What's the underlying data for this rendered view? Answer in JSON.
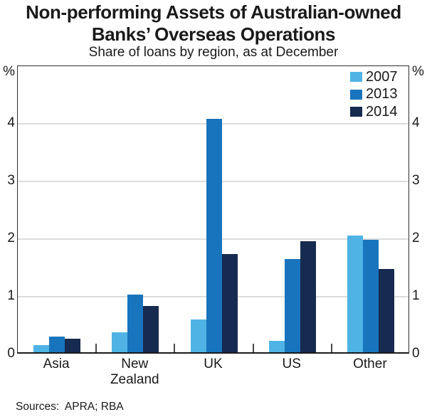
{
  "header": {
    "title_lines": [
      "Non-performing Assets of Australian-owned",
      "Banks’ Overseas Operations"
    ],
    "subtitle": "Share of loans by region, as at December"
  },
  "chart_data": {
    "type": "bar",
    "title": "Non-performing Assets of Australian-owned Banks’ Overseas Operations",
    "subtitle": "Share of loans by region, as at December",
    "categories": [
      "Asia",
      "New Zealand",
      "UK",
      "US",
      "Other"
    ],
    "series": [
      {
        "name": "2007",
        "color": "#4FB4E5",
        "values": [
          0.12,
          0.35,
          0.57,
          0.2,
          2.02
        ]
      },
      {
        "name": "2013",
        "color": "#1874BC",
        "values": [
          0.27,
          1.0,
          4.05,
          1.62,
          1.95
        ]
      },
      {
        "name": "2014",
        "color": "#172A4F",
        "values": [
          0.23,
          0.8,
          1.7,
          1.93,
          1.45
        ]
      }
    ],
    "ylim": [
      0,
      5
    ],
    "yticks": [
      0,
      1,
      2,
      3,
      4
    ],
    "y_unit": "%",
    "grid": "horizontal",
    "legend_position": "top-right",
    "gridline_color": "#dcdcdc"
  },
  "footer": {
    "sources": "Sources:  APRA; RBA"
  }
}
